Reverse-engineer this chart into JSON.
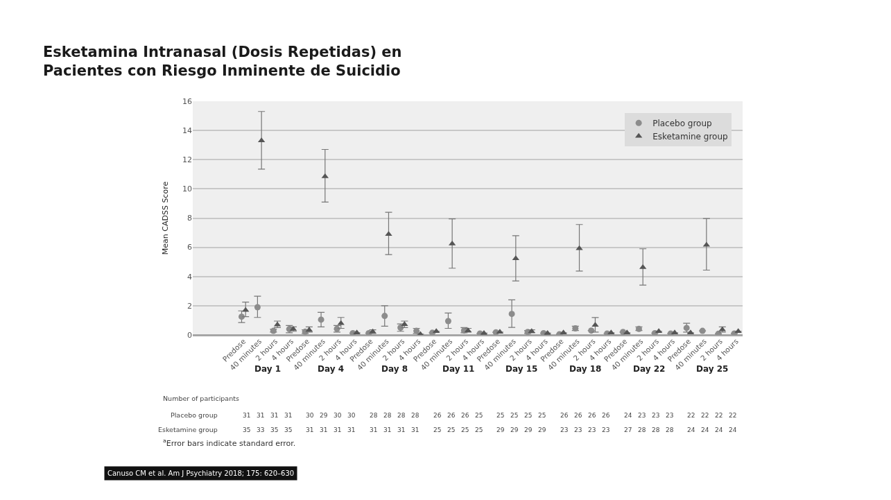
{
  "chart_data": {
    "type": "scatter",
    "title": "Esketamina Intranasal (Dosis Repetidas) en\nPacientes con Riesgo Inminente de Suicidio",
    "ylabel": "Mean CADSS Score",
    "categories": [
      "Predose",
      "40 minutes",
      "2 hours",
      "4 hours",
      "Predose",
      "40 minutes",
      "2 hours",
      "4 hours",
      "Predose",
      "40 minutes",
      "2 hours",
      "4 hours",
      "Predose",
      "40 minutes",
      "2 hours",
      "4 hours",
      "Predose",
      "40 minutes",
      "2 hours",
      "4 hours",
      "Predose",
      "40 minutes",
      "2 hours",
      "4 hours",
      "Predose",
      "40 minutes",
      "2 hours",
      "4 hours",
      "Predose",
      "40 minutes",
      "2 hours",
      "4 hours"
    ],
    "series": [
      {
        "name": "Placebo group",
        "color": "#8c8c8c",
        "marker": "circle",
        "values": [
          1.25,
          1.9,
          0.28,
          0.4,
          0.22,
          1.05,
          0.42,
          0.12,
          0.12,
          1.3,
          0.5,
          0.28,
          0.15,
          0.95,
          0.3,
          0.1,
          0.18,
          1.44,
          0.2,
          0.12,
          0.05,
          0.45,
          0.3,
          0.1,
          0.2,
          0.41,
          0.12,
          0.1,
          0.48,
          0.28,
          0.08,
          0.1
        ],
        "errors": [
          [
            0.85,
            1.65
          ],
          [
            1.2,
            2.65
          ],
          [
            0.2,
            0.4
          ],
          [
            0.15,
            0.65
          ],
          [
            0.1,
            0.35
          ],
          [
            0.55,
            1.55
          ],
          [
            0.2,
            0.65
          ],
          null,
          null,
          [
            0.6,
            2.0
          ],
          [
            0.25,
            0.75
          ],
          [
            0.1,
            0.45
          ],
          null,
          [
            0.45,
            1.5
          ],
          [
            0.15,
            0.5
          ],
          null,
          null,
          [
            0.52,
            2.4
          ],
          [
            0.1,
            0.3
          ],
          null,
          null,
          [
            0.3,
            0.6
          ],
          null,
          null,
          null,
          [
            0.3,
            0.55
          ],
          null,
          null,
          [
            0.2,
            0.8
          ],
          null,
          null,
          null
        ]
      },
      {
        "name": "Esketamine group",
        "color": "#555555",
        "marker": "triangle",
        "values": [
          1.7,
          13.3,
          0.7,
          0.4,
          0.35,
          10.85,
          0.8,
          0.15,
          0.22,
          6.9,
          0.72,
          0.05,
          0.25,
          6.24,
          0.3,
          0.12,
          0.2,
          5.24,
          0.25,
          0.12,
          0.15,
          5.92,
          0.68,
          0.15,
          0.15,
          4.63,
          0.25,
          0.15,
          0.15,
          6.16,
          0.37,
          0.25
        ],
        "errors": [
          [
            1.25,
            2.25
          ],
          [
            11.35,
            15.3
          ],
          [
            0.5,
            0.95
          ],
          [
            0.25,
            0.55
          ],
          [
            0.2,
            0.55
          ],
          [
            9.1,
            12.7
          ],
          [
            0.45,
            1.2
          ],
          null,
          [
            0.1,
            0.35
          ],
          [
            5.5,
            8.4
          ],
          [
            0.5,
            0.95
          ],
          null,
          null,
          [
            4.57,
            7.95
          ],
          [
            0.2,
            0.45
          ],
          null,
          null,
          [
            3.7,
            6.8
          ],
          [
            0.15,
            0.35
          ],
          null,
          null,
          [
            4.37,
            7.56
          ],
          [
            0.2,
            1.19
          ],
          null,
          null,
          [
            3.41,
            5.9
          ],
          null,
          null,
          null,
          [
            4.44,
            7.97
          ],
          [
            0.2,
            0.55
          ],
          null
        ]
      }
    ],
    "ylim": [
      0,
      16
    ],
    "yticks": [
      0,
      2,
      4,
      6,
      8,
      10,
      12,
      14,
      16
    ],
    "grid": "y",
    "legend": "top right",
    "annotations": [
      "Day 1",
      "Day 4",
      "Day 8",
      "Day 11",
      "Day 15",
      "Day 18",
      "Day 22",
      "Day 25",
      "Number of participants",
      "Placebo group",
      "Esketamine group",
      "31   31   31   31",
      "30   29   30   30",
      "28   28   28   28",
      "26   26   26   25",
      "25   25   25   25",
      "26   26   26   26",
      "24   23   23   23",
      "22   22   22   22",
      "35   33   35   35",
      "31   31   31   31",
      "31   31   31   31",
      "25   25   25   25",
      "29   29   29   29",
      "23   23   23   23",
      "27   28   28   28",
      "24   24   24   24",
      "$^{a}$Error bars indicate standard error.",
      "Canuso CM et al. Am J Psychiatry 2018; 175: 620–630"
    ]
  }
}
